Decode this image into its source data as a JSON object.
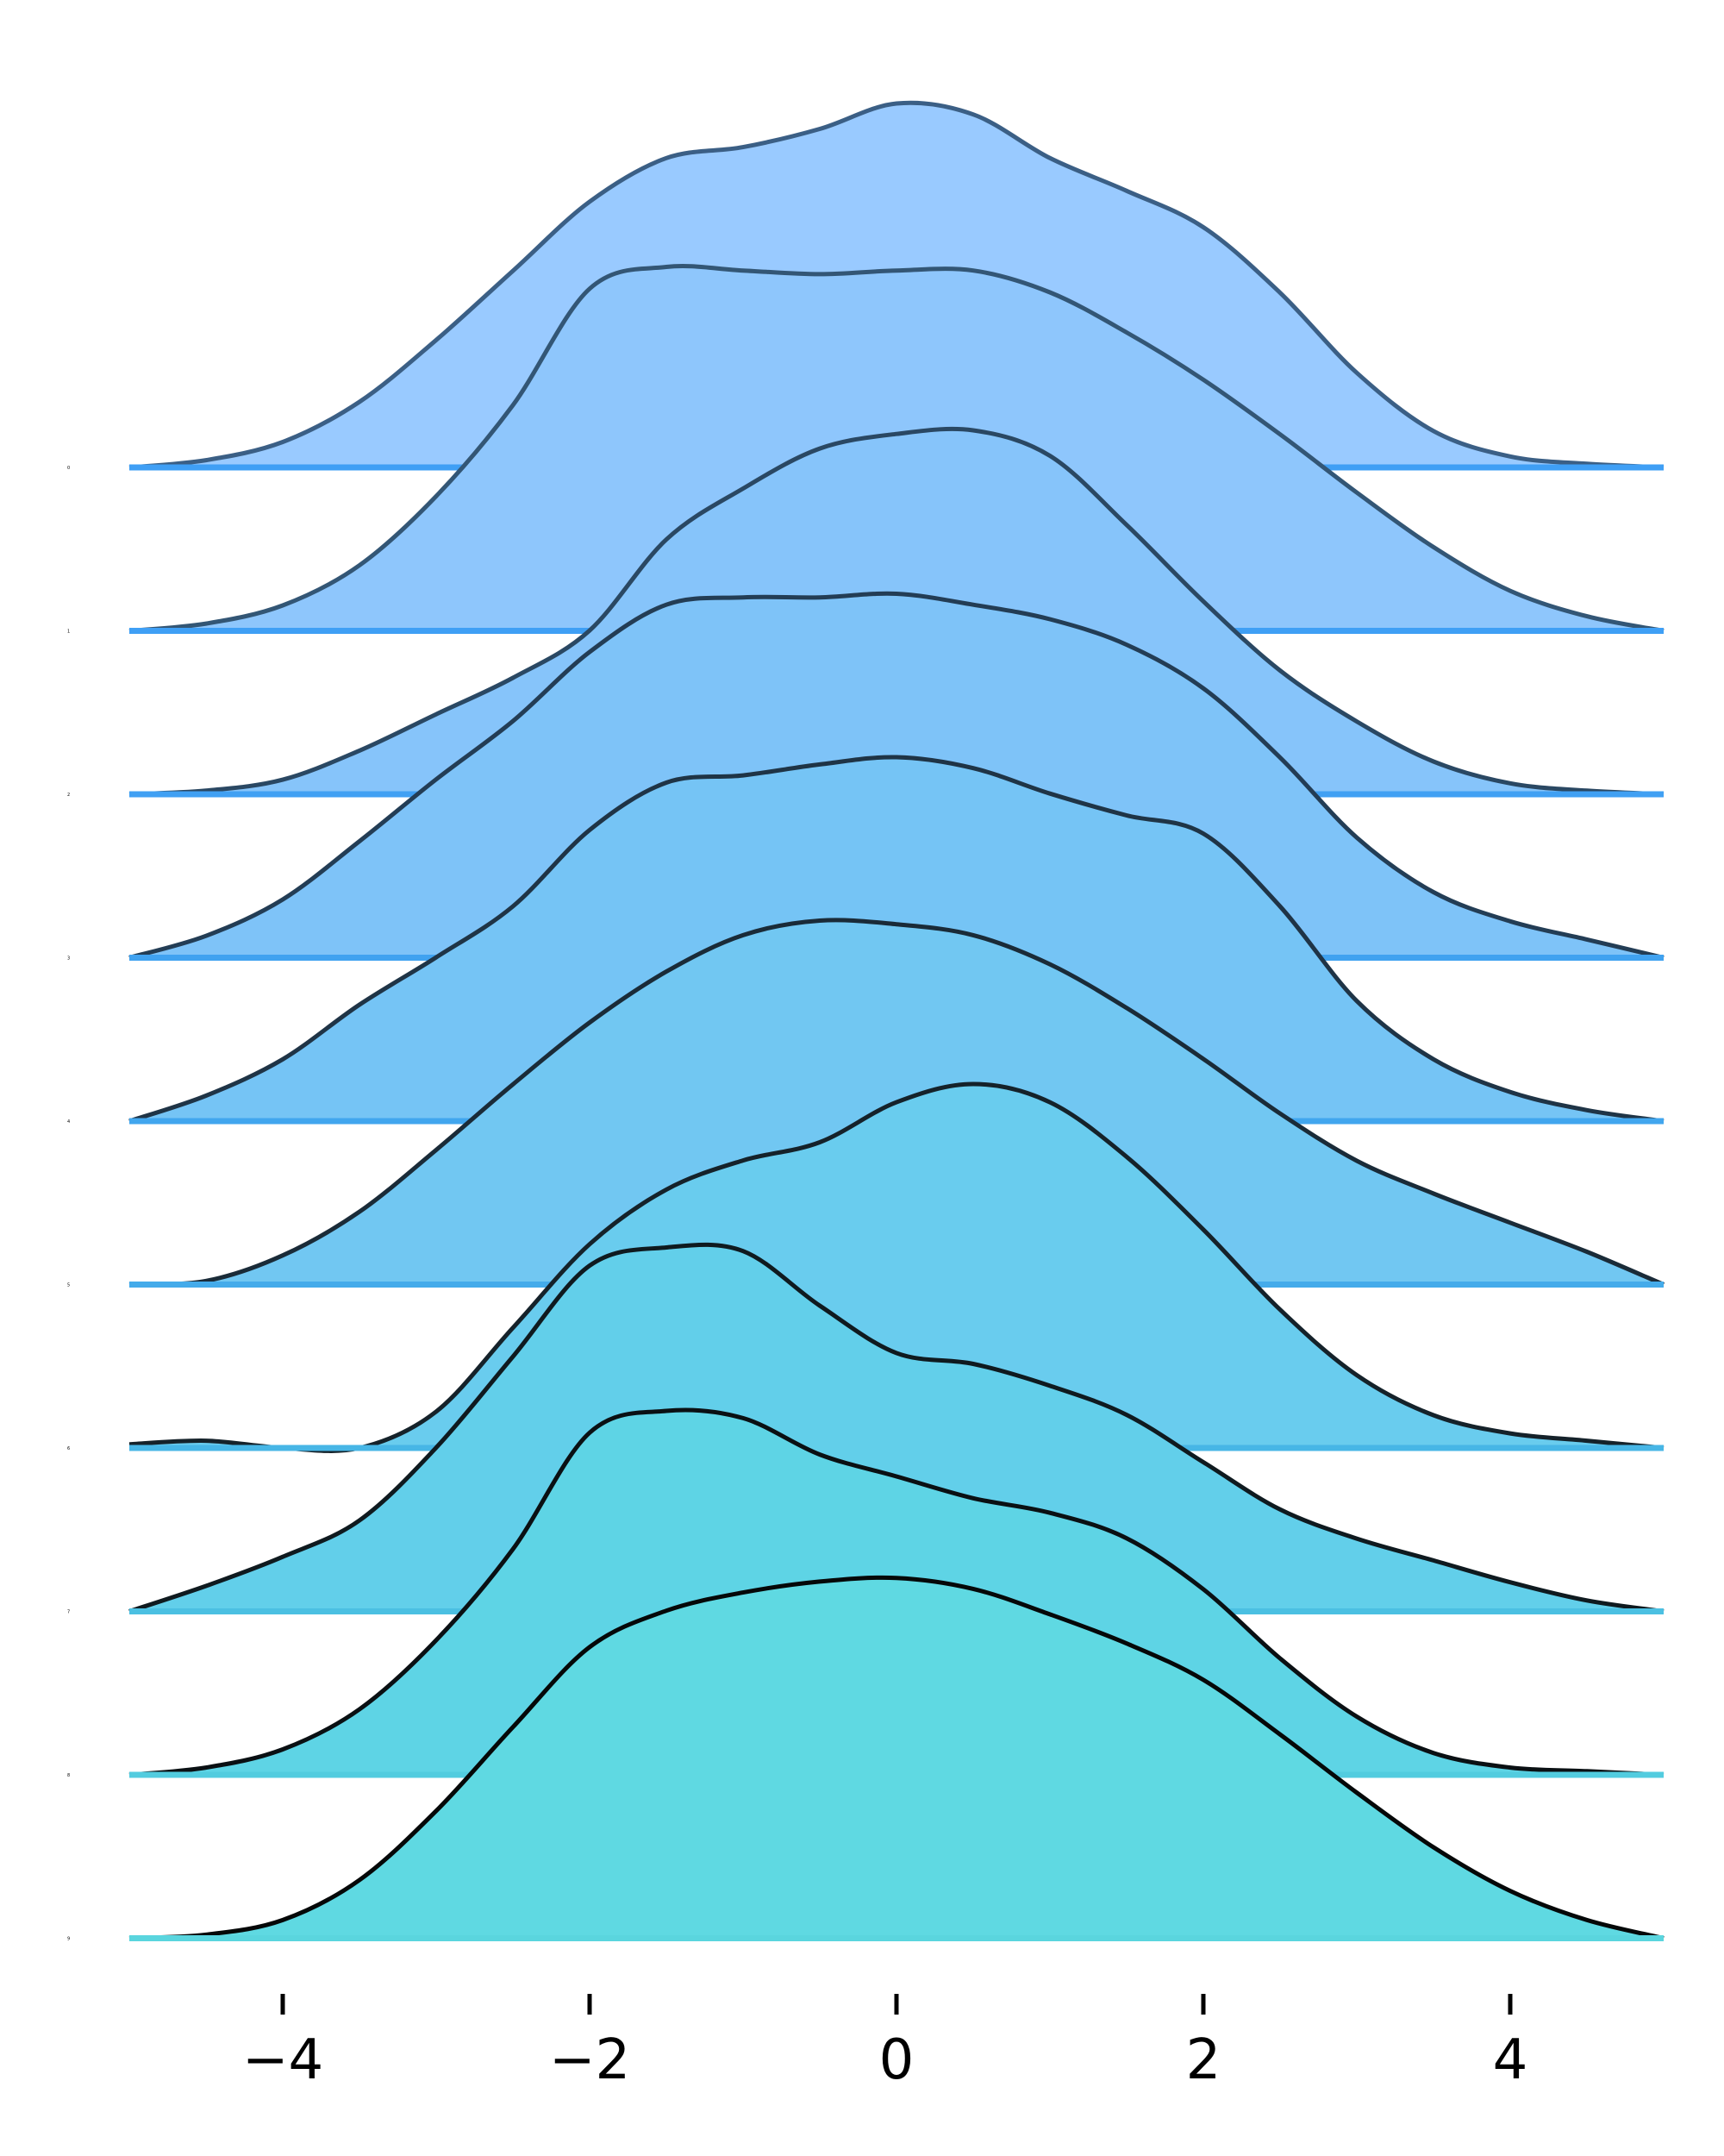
{
  "chart_data": {
    "type": "area",
    "chart_kind": "ridgeline",
    "title": "",
    "xlabel": "",
    "ylabel": "",
    "xlim": [
      -5,
      5
    ],
    "x_ticks": [
      -4,
      -2,
      0,
      2,
      4
    ],
    "x_tick_labels": [
      "−4",
      "−2",
      "0",
      "2",
      "4"
    ],
    "grid": false,
    "legend": "none",
    "colors": {
      "fill": [
        "#99caff",
        "#8ec6fc",
        "#86c4fa",
        "#7ec3f8",
        "#75c4f5",
        "#71c7f2",
        "#69ccee",
        "#62cfea",
        "#5ed4e5",
        "#5fd9e2"
      ],
      "stroke": [
        "#3b5f85",
        "#335675",
        "#2a4863",
        "#233d55",
        "#1f3446",
        "#1a2b38",
        "#15222a",
        "#0f1a1f",
        "#0a1013",
        "#050808"
      ],
      "baseline": [
        "#3f9ff5",
        "#3f9ff5",
        "#40a0f3",
        "#40a2f0",
        "#41a6ee",
        "#44abea",
        "#47b6e6",
        "#4bc0e2",
        "#52ccdf",
        "#5ad5de"
      ]
    },
    "x": [
      -5,
      -4.5,
      -4,
      -3.5,
      -3,
      -2.5,
      -2,
      -1.5,
      -1,
      -0.5,
      0,
      0.5,
      1,
      1.5,
      2,
      2.5,
      3,
      3.5,
      4,
      4.5,
      5
    ],
    "series": [
      {
        "label": "0",
        "values": [
          0.0,
          0.02,
          0.07,
          0.18,
          0.35,
          0.54,
          0.73,
          0.85,
          0.88,
          0.93,
          1.0,
          0.97,
          0.85,
          0.76,
          0.66,
          0.48,
          0.26,
          0.1,
          0.03,
          0.01,
          0.0
        ]
      },
      {
        "label": "1",
        "values": [
          0.0,
          0.02,
          0.07,
          0.18,
          0.37,
          0.62,
          0.94,
          1.0,
          0.99,
          0.98,
          0.99,
          0.99,
          0.93,
          0.82,
          0.69,
          0.54,
          0.38,
          0.23,
          0.11,
          0.04,
          0.0
        ]
      },
      {
        "label": "2",
        "values": [
          0.0,
          0.01,
          0.04,
          0.12,
          0.22,
          0.32,
          0.45,
          0.7,
          0.84,
          0.95,
          0.99,
          1.0,
          0.93,
          0.74,
          0.53,
          0.34,
          0.2,
          0.09,
          0.03,
          0.01,
          0.0
        ]
      },
      {
        "label": "3",
        "values": [
          0.0,
          0.06,
          0.16,
          0.32,
          0.49,
          0.65,
          0.84,
          0.97,
          0.99,
          0.99,
          1.0,
          0.97,
          0.93,
          0.86,
          0.74,
          0.55,
          0.33,
          0.18,
          0.1,
          0.05,
          0.0
        ]
      },
      {
        "label": "4",
        "values": [
          0.0,
          0.07,
          0.17,
          0.32,
          0.45,
          0.59,
          0.8,
          0.93,
          0.95,
          0.98,
          1.0,
          0.97,
          0.9,
          0.84,
          0.79,
          0.59,
          0.33,
          0.17,
          0.08,
          0.03,
          0.0
        ]
      },
      {
        "label": "5",
        "values": [
          0.0,
          0.01,
          0.08,
          0.2,
          0.37,
          0.55,
          0.72,
          0.86,
          0.96,
          1.0,
          0.99,
          0.96,
          0.88,
          0.76,
          0.62,
          0.47,
          0.34,
          0.25,
          0.17,
          0.09,
          0.0
        ]
      },
      {
        "label": "6",
        "values": [
          0.01,
          0.02,
          0.0,
          0.0,
          0.1,
          0.33,
          0.56,
          0.71,
          0.79,
          0.84,
          0.95,
          1.0,
          0.95,
          0.8,
          0.6,
          0.38,
          0.2,
          0.09,
          0.04,
          0.02,
          0.0
        ]
      },
      {
        "label": "7",
        "values": [
          0.0,
          0.07,
          0.15,
          0.25,
          0.45,
          0.7,
          0.95,
          1.0,
          0.99,
          0.84,
          0.71,
          0.68,
          0.62,
          0.54,
          0.41,
          0.28,
          0.2,
          0.14,
          0.08,
          0.03,
          0.0
        ]
      },
      {
        "label": "8",
        "values": [
          0.0,
          0.02,
          0.07,
          0.18,
          0.37,
          0.62,
          0.94,
          1.0,
          0.98,
          0.88,
          0.82,
          0.76,
          0.72,
          0.65,
          0.51,
          0.32,
          0.16,
          0.06,
          0.02,
          0.01,
          0.0
        ]
      },
      {
        "label": "9",
        "values": [
          0.0,
          0.01,
          0.05,
          0.16,
          0.35,
          0.58,
          0.8,
          0.9,
          0.95,
          0.98,
          0.99,
          0.96,
          0.89,
          0.81,
          0.71,
          0.56,
          0.4,
          0.25,
          0.13,
          0.05,
          0.0
        ]
      }
    ]
  }
}
